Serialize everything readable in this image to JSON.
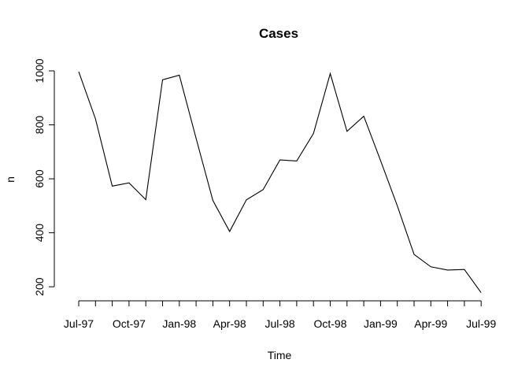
{
  "chart_data": {
    "type": "line",
    "title": "Cases",
    "xlabel": "Time",
    "ylabel": "n",
    "x_tick_labels": [
      "Jul-97",
      "Oct-97",
      "Jan-98",
      "Apr-98",
      "Jul-98",
      "Oct-98",
      "Jan-99",
      "Apr-99",
      "Jul-99"
    ],
    "y_ticks": [
      200,
      400,
      600,
      800,
      1000
    ],
    "ylim": [
      180,
      1000
    ],
    "grid": false,
    "series": [
      {
        "x": [
          "1997-07",
          "1997-08",
          "1997-09",
          "1997-10",
          "1997-11",
          "1997-12",
          "1998-01",
          "1998-02",
          "1998-03",
          "1998-04",
          "1998-05",
          "1998-06",
          "1998-07",
          "1998-08",
          "1998-09",
          "1998-10",
          "1998-11",
          "1998-12",
          "1999-01",
          "1999-02",
          "1999-03",
          "1999-04",
          "1999-05",
          "1999-06",
          "1999-07"
        ],
        "values": [
          997,
          822,
          573,
          585,
          523,
          967,
          984,
          750,
          520,
          405,
          522,
          560,
          670,
          666,
          768,
          990,
          776,
          832,
          668,
          500,
          320,
          274,
          262,
          264,
          178
        ],
        "color": "#000000"
      }
    ]
  }
}
